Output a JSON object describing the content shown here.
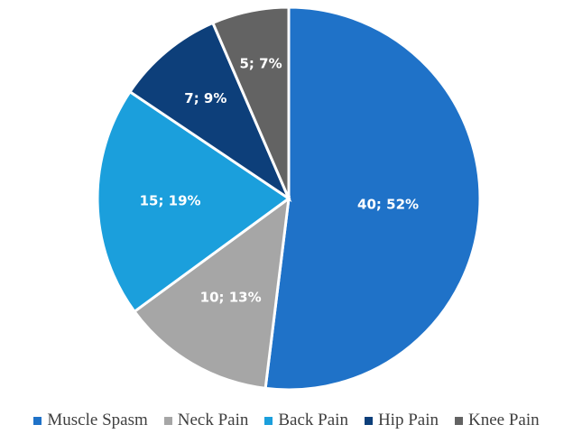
{
  "chart_data": {
    "type": "pie",
    "title": "",
    "start_angle": "12 o'clock",
    "direction": "clockwise",
    "legend_position": "bottom",
    "slices": [
      {
        "name": "Muscle Spasm",
        "value": 40,
        "percent": "52%",
        "label": "40; 52%",
        "color": "#1f72c8"
      },
      {
        "name": "Neck Pain",
        "value": 10,
        "percent": "13%",
        "label": "10; 13%",
        "color": "#a6a6a6"
      },
      {
        "name": "Back Pain",
        "value": 15,
        "percent": "19%",
        "label": "15; 19%",
        "color": "#1b9fdc"
      },
      {
        "name": "Hip Pain",
        "value": 7,
        "percent": "9%",
        "label": "7; 9%",
        "color": "#0d3f7a"
      },
      {
        "name": "Knee Pain",
        "value": 5,
        "percent": "7%",
        "label": "5; 7%",
        "color": "#636363"
      }
    ]
  }
}
